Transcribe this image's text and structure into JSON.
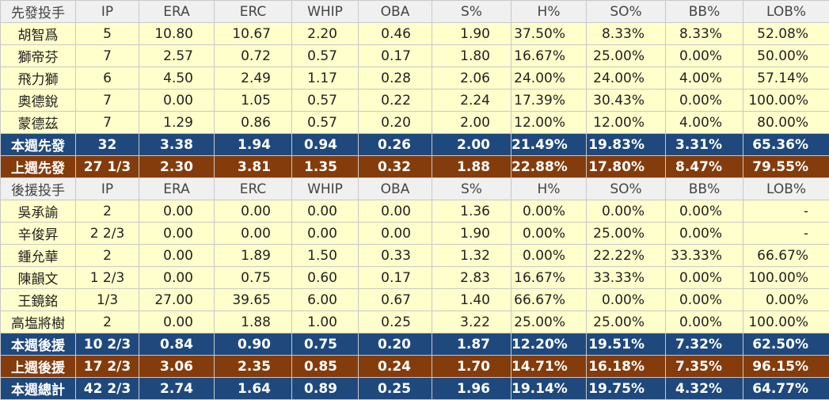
{
  "table": {
    "rows": [
      [
        "先發投手",
        "IP",
        "ERA",
        "ERC",
        "WHIP",
        "OBA",
        "S%",
        "H%",
        "SO%",
        "BB%",
        "LOB%"
      ],
      [
        "胡智爲",
        "5",
        "10.80",
        "10.67",
        "2.20",
        "0.46",
        "1.90",
        "37.50%",
        "8.33%",
        "8.33%",
        "52.08%"
      ],
      [
        "獅帝芬",
        "7",
        "2.57",
        "0.72",
        "0.57",
        "0.17",
        "1.80",
        "16.67%",
        "25.00%",
        "0.00%",
        "50.00%"
      ],
      [
        "飛力獅",
        "6",
        "4.50",
        "2.49",
        "1.17",
        "0.28",
        "2.06",
        "24.00%",
        "24.00%",
        "4.00%",
        "57.14%"
      ],
      [
        "奧德銳",
        "7",
        "0.00",
        "1.05",
        "0.57",
        "0.22",
        "2.24",
        "17.39%",
        "30.43%",
        "0.00%",
        "100.00%"
      ],
      [
        "蒙德茲",
        "7",
        "1.29",
        "0.86",
        "0.57",
        "0.20",
        "2.00",
        "12.00%",
        "12.00%",
        "4.00%",
        "80.00%"
      ],
      [
        "本週先發",
        "32",
        "3.38",
        "1.94",
        "0.94",
        "0.26",
        "2.00",
        "21.49%",
        "19.83%",
        "3.31%",
        "65.36%"
      ],
      [
        "上週先發",
        "27 1/3",
        "2.30",
        "3.81",
        "1.35",
        "0.32",
        "1.88",
        "22.88%",
        "17.80%",
        "8.47%",
        "79.55%"
      ],
      [
        "後援投手",
        "IP",
        "ERA",
        "ERC",
        "WHIP",
        "OBA",
        "S%",
        "H%",
        "SO%",
        "BB%",
        "LOB%"
      ],
      [
        "吳承諭",
        "2",
        "0.00",
        "0.00",
        "0.00",
        "0.00",
        "1.36",
        "0.00%",
        "0.00%",
        "0.00%",
        "-"
      ],
      [
        "辛俊昇",
        "2 2/3",
        "0.00",
        "0.00",
        "0.00",
        "0.00",
        "1.90",
        "0.00%",
        "25.00%",
        "0.00%",
        "-"
      ],
      [
        "鍾允華",
        "2",
        "0.00",
        "1.89",
        "1.50",
        "0.33",
        "1.32",
        "0.00%",
        "22.22%",
        "33.33%",
        "66.67%"
      ],
      [
        "陳韻文",
        "1 2/3",
        "0.00",
        "0.75",
        "0.60",
        "0.17",
        "2.83",
        "16.67%",
        "33.33%",
        "0.00%",
        "100.00%"
      ],
      [
        "王鏡銘",
        "1/3",
        "27.00",
        "39.65",
        "6.00",
        "0.67",
        "1.40",
        "66.67%",
        "0.00%",
        "0.00%",
        "0.00%"
      ],
      [
        "高塩將樹",
        "2",
        "0.00",
        "1.88",
        "1.00",
        "0.25",
        "3.22",
        "25.00%",
        "25.00%",
        "0.00%",
        "100.00%"
      ],
      [
        "本週後援",
        "10 2/3",
        "0.84",
        "0.90",
        "0.75",
        "0.20",
        "1.87",
        "12.20%",
        "19.51%",
        "7.32%",
        "62.50%"
      ],
      [
        "上週後援",
        "17 2/3",
        "3.06",
        "2.35",
        "0.85",
        "0.24",
        "1.70",
        "14.71%",
        "16.18%",
        "7.35%",
        "96.15%"
      ],
      [
        "本週總計",
        "42 2/3",
        "2.74",
        "1.64",
        "0.89",
        "0.25",
        "1.96",
        "19.14%",
        "19.75%",
        "4.32%",
        "64.77%"
      ]
    ]
  }
}
